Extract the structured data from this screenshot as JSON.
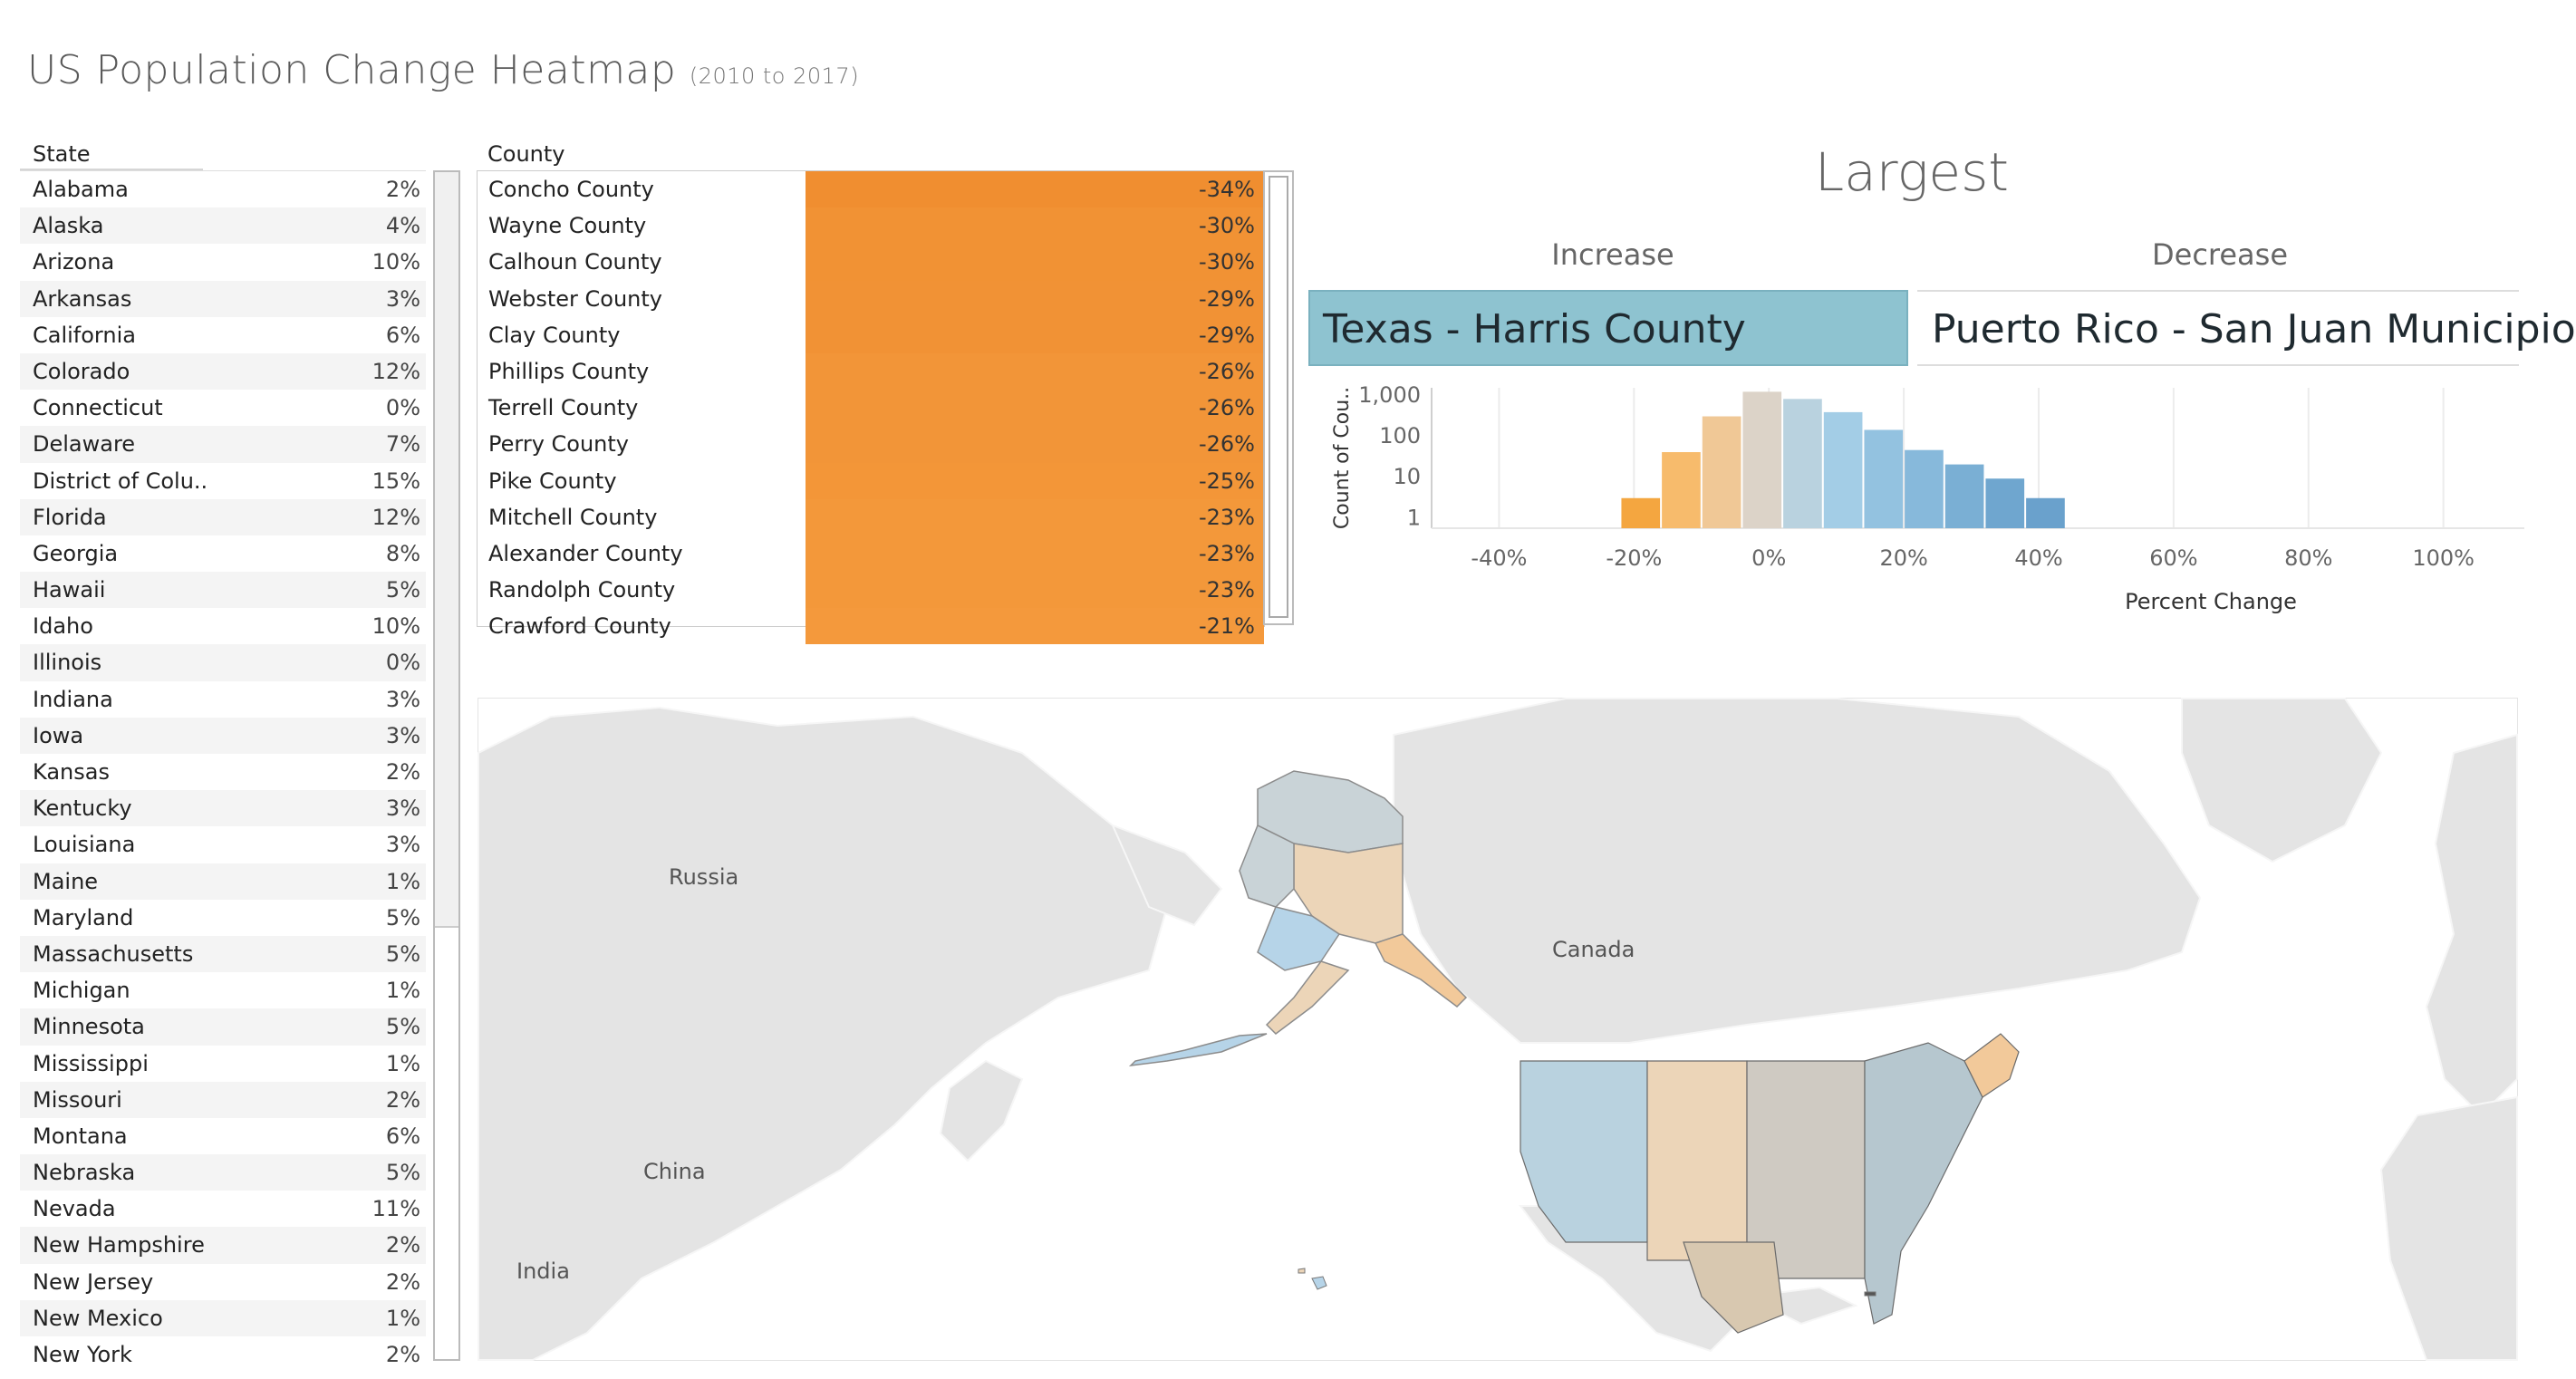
{
  "title": "US Population Change Heatmap",
  "subtitle": "(2010 to 2017)",
  "state_table": {
    "header": "State",
    "rows": [
      {
        "name": "Alabama",
        "value": "2%"
      },
      {
        "name": "Alaska",
        "value": "4%"
      },
      {
        "name": "Arizona",
        "value": "10%"
      },
      {
        "name": "Arkansas",
        "value": "3%"
      },
      {
        "name": "California",
        "value": "6%"
      },
      {
        "name": "Colorado",
        "value": "12%"
      },
      {
        "name": "Connecticut",
        "value": "0%"
      },
      {
        "name": "Delaware",
        "value": "7%"
      },
      {
        "name": "District of Colu..",
        "value": "15%"
      },
      {
        "name": "Florida",
        "value": "12%"
      },
      {
        "name": "Georgia",
        "value": "8%"
      },
      {
        "name": "Hawaii",
        "value": "5%"
      },
      {
        "name": "Idaho",
        "value": "10%"
      },
      {
        "name": "Illinois",
        "value": "0%"
      },
      {
        "name": "Indiana",
        "value": "3%"
      },
      {
        "name": "Iowa",
        "value": "3%"
      },
      {
        "name": "Kansas",
        "value": "2%"
      },
      {
        "name": "Kentucky",
        "value": "3%"
      },
      {
        "name": "Louisiana",
        "value": "3%"
      },
      {
        "name": "Maine",
        "value": "1%"
      },
      {
        "name": "Maryland",
        "value": "5%"
      },
      {
        "name": "Massachusetts",
        "value": "5%"
      },
      {
        "name": "Michigan",
        "value": "1%"
      },
      {
        "name": "Minnesota",
        "value": "5%"
      },
      {
        "name": "Mississippi",
        "value": "1%"
      },
      {
        "name": "Missouri",
        "value": "2%"
      },
      {
        "name": "Montana",
        "value": "6%"
      },
      {
        "name": "Nebraska",
        "value": "5%"
      },
      {
        "name": "Nevada",
        "value": "11%"
      },
      {
        "name": "New Hampshire",
        "value": "2%"
      },
      {
        "name": "New Jersey",
        "value": "2%"
      },
      {
        "name": "New Mexico",
        "value": "1%"
      },
      {
        "name": "New York",
        "value": "2%"
      }
    ]
  },
  "county_table": {
    "header": "County",
    "rows": [
      {
        "name": "Concho County",
        "value": "-34%",
        "pct": -34
      },
      {
        "name": "Wayne County",
        "value": "-30%",
        "pct": -30
      },
      {
        "name": "Calhoun County",
        "value": "-30%",
        "pct": -30
      },
      {
        "name": "Webster County",
        "value": "-29%",
        "pct": -29
      },
      {
        "name": "Clay County",
        "value": "-29%",
        "pct": -29
      },
      {
        "name": "Phillips County",
        "value": "-26%",
        "pct": -26
      },
      {
        "name": "Terrell County",
        "value": "-26%",
        "pct": -26
      },
      {
        "name": "Perry County",
        "value": "-26%",
        "pct": -26
      },
      {
        "name": "Pike County",
        "value": "-25%",
        "pct": -25
      },
      {
        "name": "Mitchell County",
        "value": "-23%",
        "pct": -23
      },
      {
        "name": "Alexander County",
        "value": "-23%",
        "pct": -23
      },
      {
        "name": "Randolph County",
        "value": "-23%",
        "pct": -23
      },
      {
        "name": "Crawford County",
        "value": "-21%",
        "pct": -21
      }
    ]
  },
  "largest": {
    "title": "Largest",
    "increase_label": "Increase",
    "decrease_label": "Decrease",
    "increase_value": "Texas - Harris County",
    "decrease_value": "Puerto Rico - San Juan Municipio"
  },
  "chart_data": {
    "type": "bar",
    "xlabel": "Percent Change",
    "ylabel": "Count of Cou..",
    "y_scale": "log",
    "y_ticks": [
      "1",
      "10",
      "100",
      "1,000"
    ],
    "x_ticks": [
      "-40%",
      "-20%",
      "0%",
      "20%",
      "40%",
      "60%",
      "80%",
      "100%"
    ],
    "xlim": [
      -50,
      112
    ],
    "bins": [
      {
        "x0": -22,
        "x1": -16,
        "count": 3,
        "color": "#f4a640"
      },
      {
        "x0": -16,
        "x1": -10,
        "count": 40,
        "color": "#f7bb6c"
      },
      {
        "x0": -10,
        "x1": -4,
        "count": 300,
        "color": "#f0c896"
      },
      {
        "x0": -4,
        "x1": 2,
        "count": 1200,
        "color": "#dcd3c8"
      },
      {
        "x0": 2,
        "x1": 8,
        "count": 800,
        "color": "#b9d2df"
      },
      {
        "x0": 8,
        "x1": 14,
        "count": 380,
        "color": "#a3cde6"
      },
      {
        "x0": 14,
        "x1": 20,
        "count": 140,
        "color": "#93c2e0"
      },
      {
        "x0": 20,
        "x1": 26,
        "count": 45,
        "color": "#87b9db"
      },
      {
        "x0": 26,
        "x1": 32,
        "count": 20,
        "color": "#7aafd4"
      },
      {
        "x0": 32,
        "x1": 38,
        "count": 9,
        "color": "#6fa6cf"
      },
      {
        "x0": 38,
        "x1": 44,
        "count": 3,
        "color": "#6aa1cc"
      }
    ]
  },
  "map": {
    "labels": {
      "russia": "Russia",
      "canada": "Canada",
      "china": "China",
      "india": "India"
    }
  }
}
